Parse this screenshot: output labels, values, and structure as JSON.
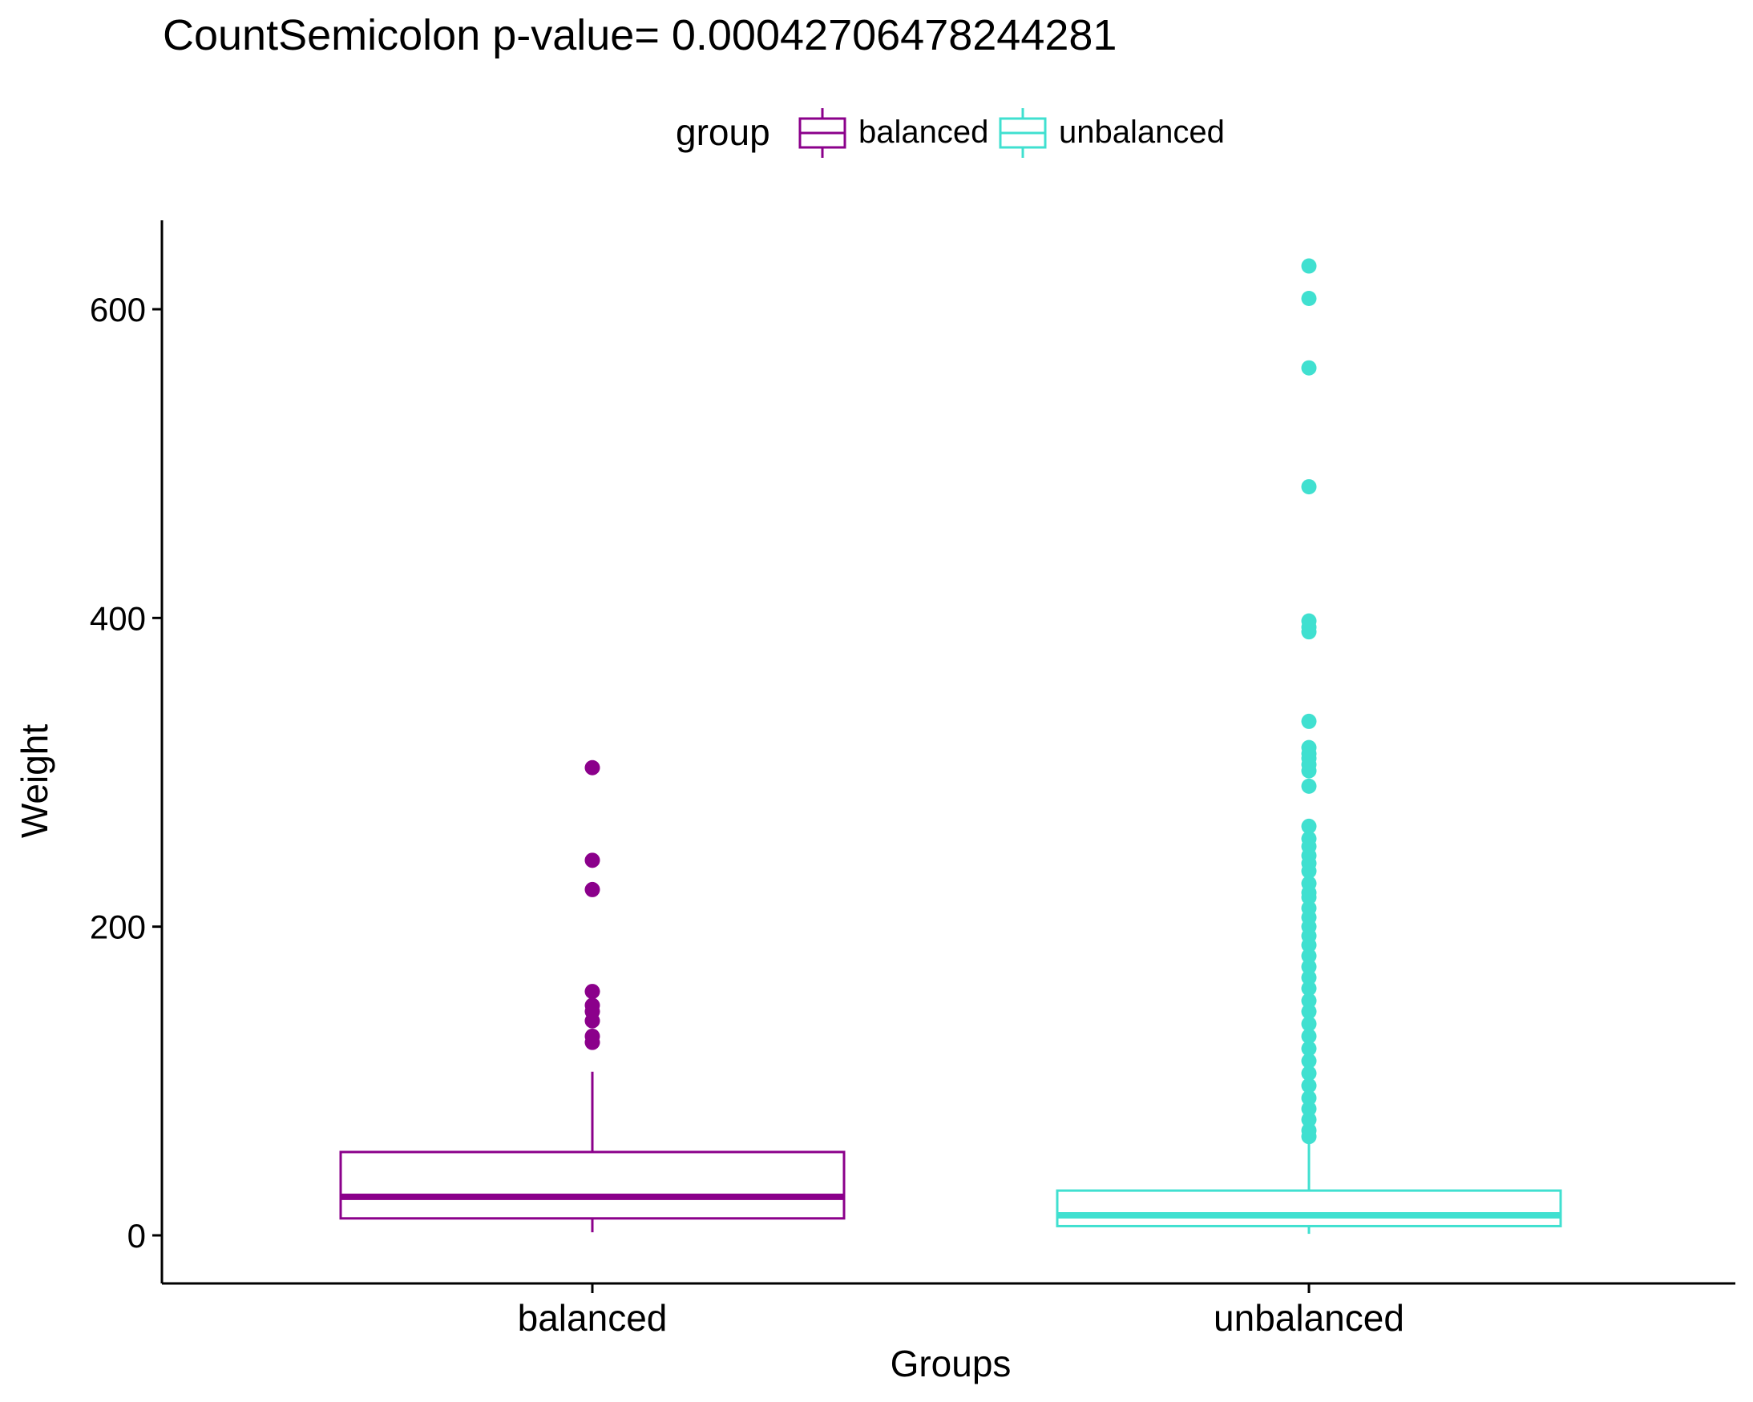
{
  "chart_data": {
    "type": "box",
    "title": "CountSemicolon  p-value= 0.000427064782442​81",
    "xlabel": "Groups",
    "ylabel": "Weight",
    "ylim": [
      -30,
      660
    ],
    "yticks": [
      0,
      200,
      400,
      600
    ],
    "ytick_labels": [
      "0",
      "200",
      "400",
      "600"
    ],
    "legend": {
      "title": "group",
      "position": "top",
      "entries": [
        "balanced",
        "unbalanced"
      ]
    },
    "grid": false,
    "categories": [
      "balanced",
      "unbalanced"
    ],
    "series": [
      {
        "name": "balanced",
        "color": "#8B008B",
        "whisker_low": 2,
        "q1": 11,
        "median": 25,
        "q3": 54,
        "whisker_high": 106,
        "outliers": [
          303,
          243,
          224,
          158,
          149,
          145,
          139,
          129,
          125
        ]
      },
      {
        "name": "unbalanced",
        "color": "#40E0D0",
        "whisker_low": 1,
        "q1": 6,
        "median": 13,
        "q3": 29,
        "whisker_high": 60,
        "outliers": [
          628,
          607,
          562,
          485,
          398,
          394,
          391,
          333,
          316,
          312,
          309,
          305,
          301,
          291,
          265,
          257,
          252,
          246,
          241,
          236,
          228,
          222,
          219,
          212,
          206,
          200,
          194,
          188,
          181,
          174,
          167,
          160,
          152,
          145,
          137,
          129,
          121,
          113,
          105,
          97,
          89,
          82,
          75,
          68,
          64
        ]
      }
    ]
  }
}
